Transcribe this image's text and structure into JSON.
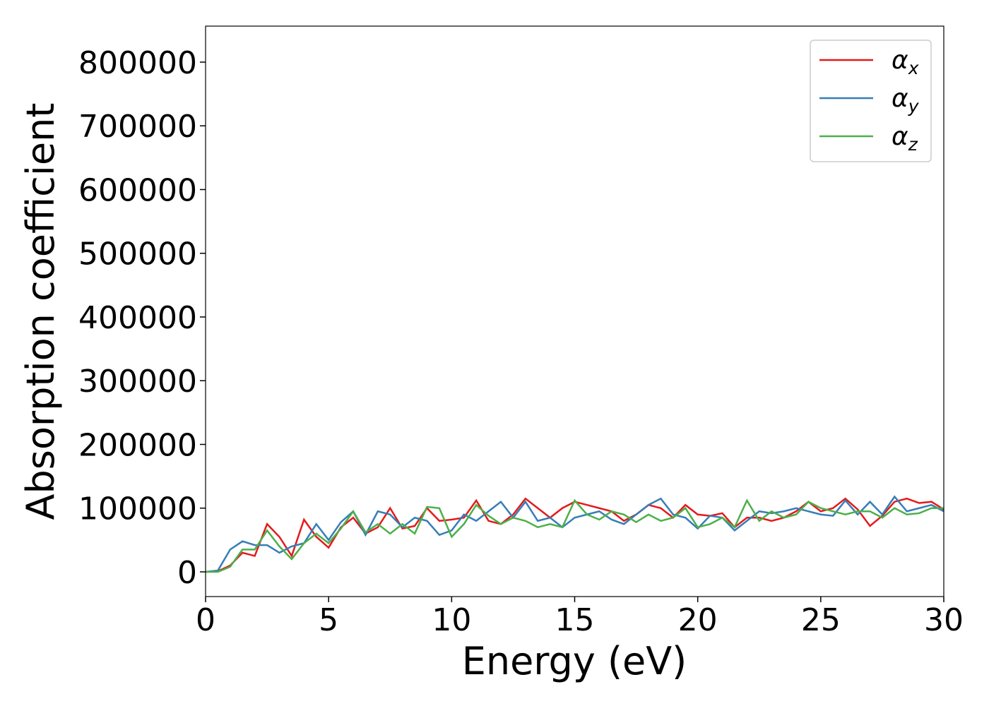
{
  "chart_data": {
    "type": "line",
    "x_label": "Energy (eV)",
    "y_label": "Absorption coefficient",
    "x": [
      0,
      0.5,
      1,
      1.5,
      2,
      2.5,
      3,
      3.5,
      4,
      4.5,
      5,
      5.5,
      6,
      6.5,
      7,
      7.5,
      8,
      8.5,
      9,
      9.5,
      10,
      10.5,
      11,
      11.5,
      12,
      12.5,
      13,
      13.5,
      14,
      14.5,
      15,
      15.5,
      16,
      16.5,
      17,
      17.5,
      18,
      18.5,
      19,
      19.5,
      20,
      20.5,
      21,
      21.5,
      22,
      22.5,
      23,
      23.5,
      24,
      24.5,
      25,
      25.5,
      26,
      26.5,
      27,
      27.5,
      28,
      28.5,
      29,
      29.5,
      30
    ],
    "series": [
      {
        "name": "αx",
        "color": "#e41a1c",
        "values": [
          0,
          1000,
          10000,
          30000,
          25000,
          75000,
          55000,
          25000,
          82000,
          55000,
          38000,
          70000,
          85000,
          60000,
          70000,
          100000,
          68000,
          72000,
          100000,
          80000,
          82000,
          85000,
          112000,
          80000,
          75000,
          90000,
          115000,
          100000,
          85000,
          100000,
          110000,
          105000,
          100000,
          95000,
          80000,
          90000,
          105000,
          100000,
          85000,
          105000,
          90000,
          88000,
          92000,
          70000,
          85000,
          85000,
          80000,
          85000,
          95000,
          110000,
          95000,
          100000,
          115000,
          98000,
          72000,
          88000,
          110000,
          115000,
          108000,
          110000,
          98000
        ]
      },
      {
        "name": "αy",
        "color": "#377eb8",
        "values": [
          0,
          2000,
          35000,
          48000,
          42000,
          42000,
          30000,
          40000,
          45000,
          75000,
          50000,
          78000,
          95000,
          58000,
          95000,
          90000,
          70000,
          85000,
          80000,
          58000,
          65000,
          90000,
          80000,
          95000,
          110000,
          85000,
          110000,
          80000,
          85000,
          70000,
          85000,
          90000,
          95000,
          82000,
          75000,
          90000,
          105000,
          115000,
          90000,
          85000,
          68000,
          88000,
          85000,
          65000,
          80000,
          95000,
          92000,
          95000,
          100000,
          95000,
          90000,
          88000,
          112000,
          90000,
          110000,
          90000,
          118000,
          95000,
          100000,
          105000,
          95000
        ]
      },
      {
        "name": "αz",
        "color": "#4daf4a",
        "values": [
          0,
          0,
          8000,
          35000,
          35000,
          65000,
          40000,
          20000,
          45000,
          60000,
          45000,
          68000,
          95000,
          62000,
          75000,
          60000,
          75000,
          60000,
          102000,
          100000,
          55000,
          75000,
          105000,
          88000,
          75000,
          85000,
          80000,
          70000,
          75000,
          70000,
          112000,
          90000,
          82000,
          95000,
          90000,
          78000,
          90000,
          80000,
          85000,
          100000,
          70000,
          75000,
          85000,
          70000,
          112000,
          80000,
          95000,
          85000,
          90000,
          110000,
          100000,
          95000,
          90000,
          95000,
          95000,
          85000,
          100000,
          90000,
          92000,
          100000,
          100000
        ]
      }
    ],
    "xlim": [
      0,
      30
    ],
    "xticks": [
      0,
      5,
      10,
      15,
      20,
      25,
      30
    ],
    "ylim": [
      -38800,
      856500
    ],
    "yticks": [
      0,
      100000,
      200000,
      300000,
      400000,
      500000,
      600000,
      700000,
      800000
    ],
    "legend": "upper right"
  }
}
